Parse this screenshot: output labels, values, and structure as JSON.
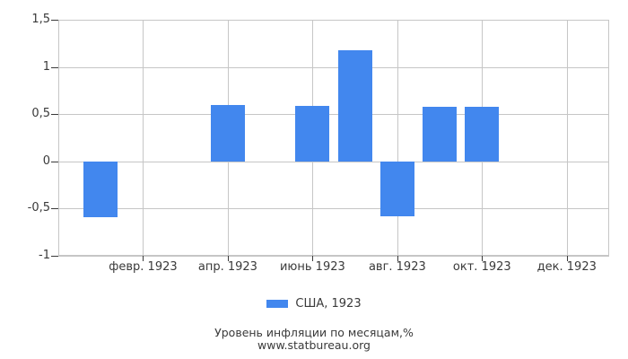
{
  "chart_data": {
    "type": "bar",
    "title": "Уровень инфляции по месяцам,%",
    "source": "www.statbureau.org",
    "x_months": [
      1,
      2,
      3,
      4,
      5,
      6,
      7,
      8,
      9,
      10,
      11,
      12
    ],
    "series": [
      {
        "name": "США, 1923",
        "values": [
          -0.59,
          0,
          0,
          0.6,
          0,
          0.59,
          1.18,
          -0.58,
          0.58,
          0.58,
          0,
          0
        ]
      }
    ],
    "x_tick_labels": [
      {
        "month": 2,
        "label": "февр. 1923"
      },
      {
        "month": 4,
        "label": "апр. 1923"
      },
      {
        "month": 6,
        "label": "июнь 1923"
      },
      {
        "month": 8,
        "label": "авг. 1923"
      },
      {
        "month": 10,
        "label": "окт. 1923"
      },
      {
        "month": 12,
        "label": "дек. 1923"
      }
    ],
    "y_ticks": [
      {
        "value": 1.5,
        "label": "1,5"
      },
      {
        "value": 1,
        "label": "1"
      },
      {
        "value": 0.5,
        "label": "0,5"
      },
      {
        "value": 0,
        "label": "0"
      },
      {
        "value": -0.5,
        "label": "-0,5"
      },
      {
        "value": -1,
        "label": "-1"
      }
    ],
    "ylim": [
      -1,
      1.5
    ],
    "grid": true,
    "legend_position": "bottom"
  },
  "legend": {
    "label": "США, 1923"
  },
  "footer": {
    "line1": "Уровень инфляции по месяцам,%",
    "line2": "www.statbureau.org"
  },
  "colors": {
    "bar": "#4287ee",
    "grid": "#c6c6c6",
    "text": "#3a3a3a",
    "background": "#ffffff"
  }
}
